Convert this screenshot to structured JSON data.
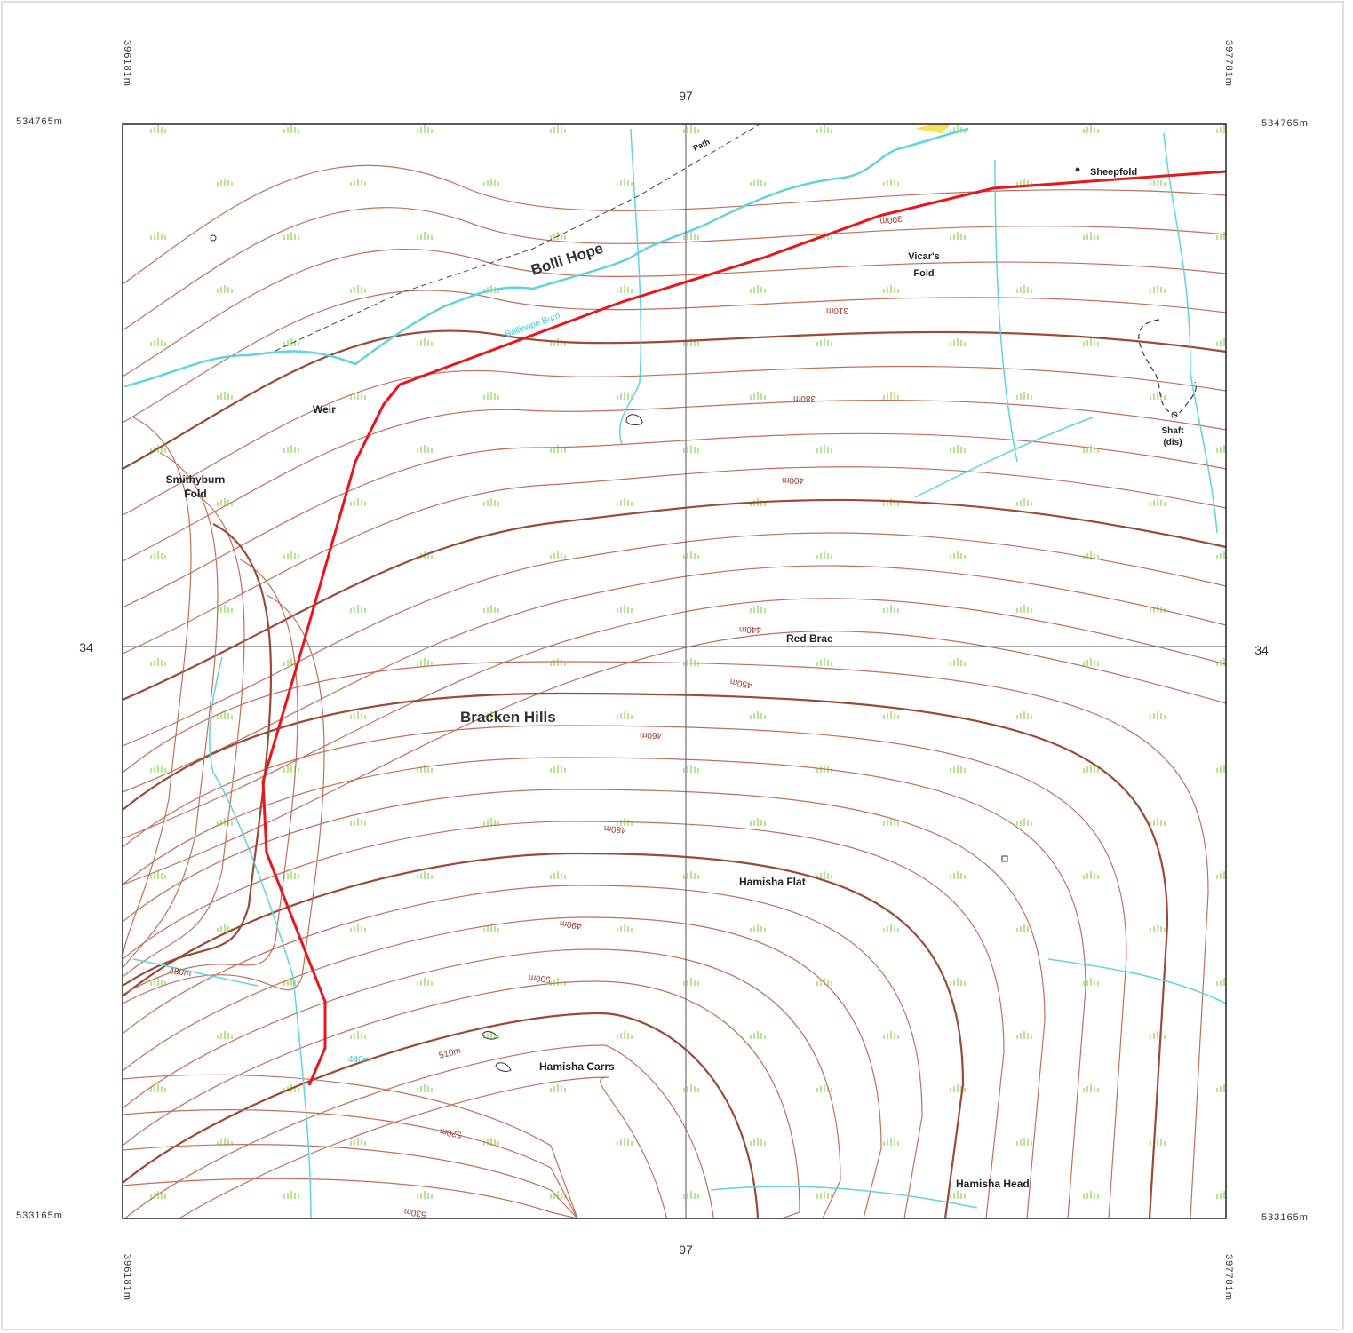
{
  "corner_coordinates": {
    "top_left_easting": "396181m",
    "top_right_easting": "397781m",
    "bottom_left_easting": "396181m",
    "bottom_right_easting": "397781m",
    "left_top_northing": "534765m",
    "right_top_northing": "534765m",
    "left_bottom_northing": "533165m",
    "right_bottom_northing": "533165m"
  },
  "grid_labels": {
    "top_easting": "97",
    "bottom_easting": "97",
    "left_northing": "34",
    "right_northing": "34"
  },
  "place_names": [
    "Path",
    "Bolli Hope",
    "Weir",
    "Smithyburn",
    "Fold",
    "Vicar's",
    "Fold",
    "Sheepfold",
    "Shaft",
    "(dis)",
    "Red Brae",
    "Bracken Hills",
    "Hamisha Flat",
    "Hamisha Carrs",
    "Hamisha Head"
  ],
  "water_names": [
    "Bollihope Burn"
  ],
  "contour_labels": [
    "300m",
    "310m",
    "380m",
    "400m",
    "440m",
    "450m",
    "460m",
    "480m",
    "490m",
    "500m",
    "510m",
    "520m",
    "530m",
    "480m",
    "440m"
  ]
}
